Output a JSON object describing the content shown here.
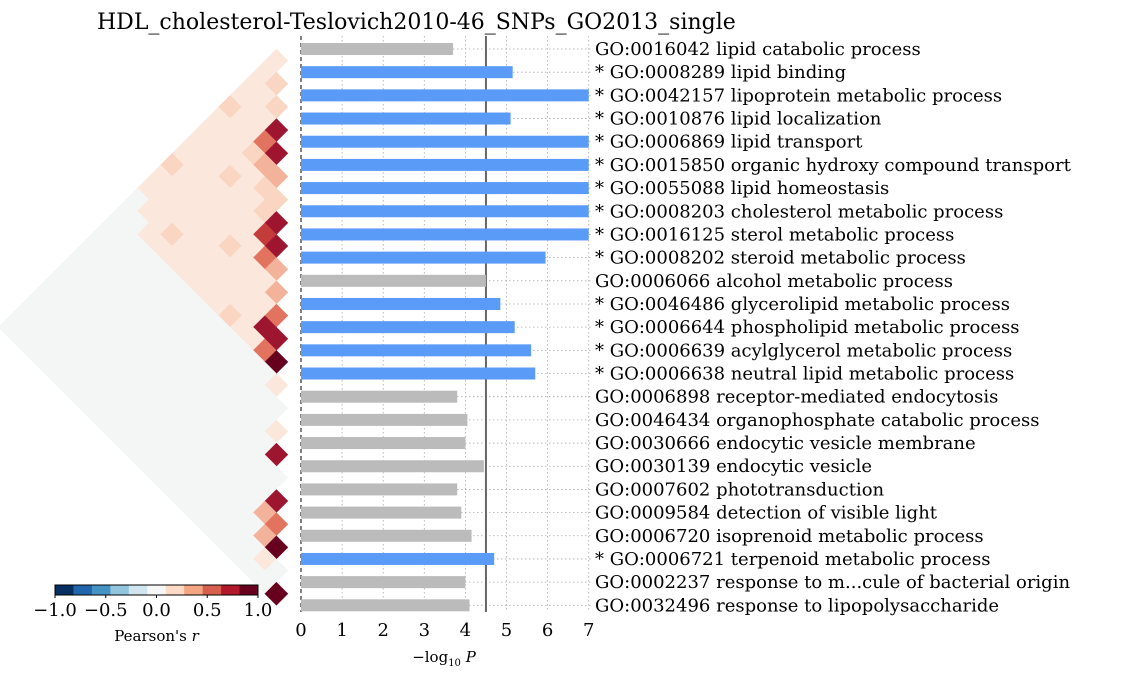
{
  "colors": {
    "significant": "#5b9bf8",
    "nonsignificant": "#bbbbbb",
    "threshold_line": "#666666",
    "heat_base": "#f4f6f6"
  },
  "chart_data": {
    "type": "bar",
    "title": "HDL_cholesterol-Teslovich2010-46_SNPs_GO2013_single",
    "orientation": "horizontal",
    "xlabel": "−log",
    "xlabel_sub": "10",
    "xlabel_var": "P",
    "xlim": [
      0,
      7
    ],
    "xticks": [
      "0",
      "1",
      "2",
      "3",
      "4",
      "5",
      "6",
      "7"
    ],
    "threshold": 4.5,
    "grid": true,
    "terms": [
      "GO:0016042 lipid catabolic process",
      "* GO:0008289 lipid binding",
      "* GO:0042157 lipoprotein metabolic process",
      "* GO:0010876 lipid localization",
      "* GO:0006869 lipid transport",
      "* GO:0015850 organic hydroxy compound transport",
      "* GO:0055088 lipid homeostasis",
      "* GO:0008203 cholesterol metabolic process",
      "* GO:0016125 sterol metabolic process",
      "* GO:0008202 steroid metabolic process",
      "GO:0006066 alcohol metabolic process",
      "* GO:0046486 glycerolipid metabolic process",
      "* GO:0006644 phospholipid metabolic process",
      "* GO:0006639 acylglycerol metabolic process",
      "* GO:0006638 neutral lipid metabolic process",
      "GO:0006898 receptor-mediated endocytosis",
      "GO:0046434 organophosphate catabolic process",
      "GO:0030666 endocytic vesicle membrane",
      "GO:0030139 endocytic vesicle",
      "GO:0007602 phototransduction",
      "GO:0009584 detection of visible light",
      "GO:0006720 isoprenoid metabolic process",
      "* GO:0006721 terpenoid metabolic process",
      "GO:0002237 response to m...cule of bacterial origin",
      "GO:0032496 response to lipopolysaccharide"
    ],
    "values": [
      3.7,
      5.15,
      7.0,
      5.1,
      7.0,
      7.0,
      7.0,
      7.0,
      7.0,
      5.95,
      4.5,
      4.85,
      5.2,
      5.6,
      5.7,
      3.8,
      4.05,
      4.0,
      4.45,
      3.8,
      3.9,
      4.15,
      4.7,
      4.0,
      4.1
    ],
    "significant": [
      false,
      true,
      true,
      true,
      true,
      true,
      true,
      true,
      true,
      true,
      false,
      true,
      true,
      true,
      true,
      false,
      false,
      false,
      false,
      false,
      false,
      false,
      true,
      false,
      false
    ],
    "colorbar": {
      "label": "Pearson's",
      "label_var": "r",
      "range": [
        -1.0,
        1.0
      ],
      "ticks": [
        "−1.0",
        "−0.5",
        "0.0",
        "0.5",
        "1.0"
      ],
      "colors": [
        "#053061",
        "#2166ac",
        "#4393c3",
        "#92c5de",
        "#d1e5f0",
        "#f7f7f7",
        "#fddbc7",
        "#f4a582",
        "#d6604d",
        "#b2182b",
        "#67001f"
      ]
    }
  }
}
